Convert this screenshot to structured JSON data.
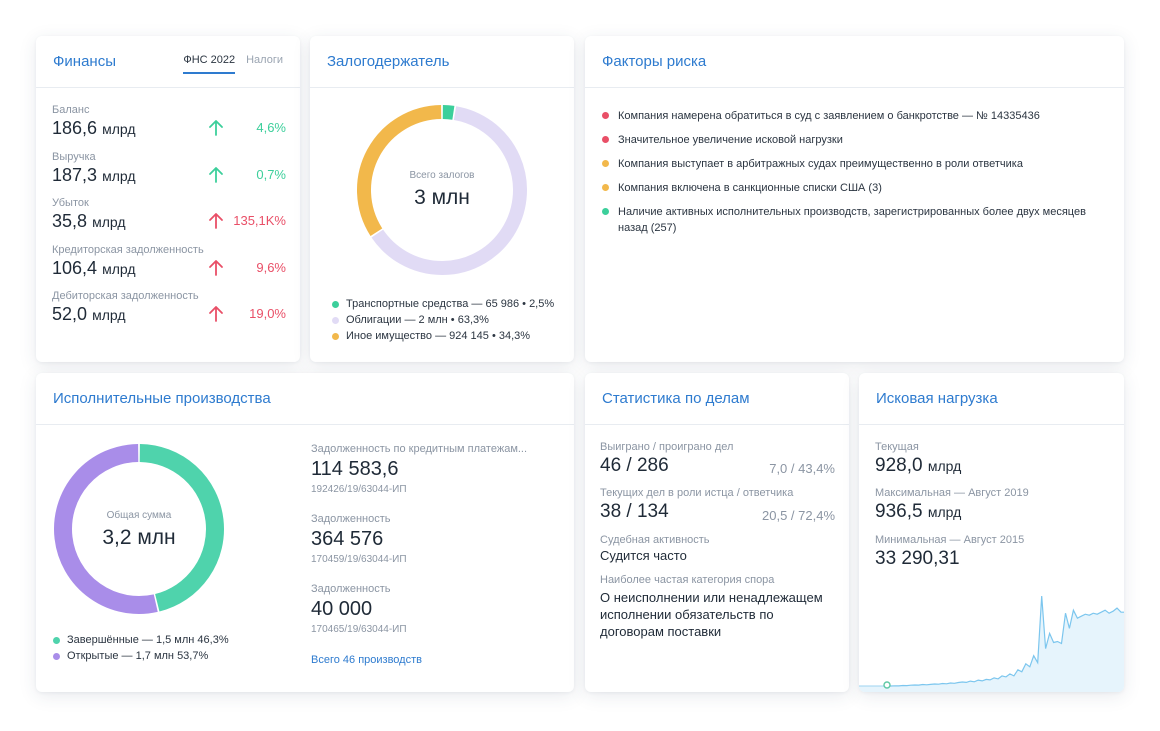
{
  "finance": {
    "title": "Финансы",
    "tabs": [
      "ФНС 2022",
      "Налоги"
    ],
    "items": [
      {
        "label": "Баланс",
        "value": "186,6",
        "unit": "млрд",
        "change": "4,6%",
        "direction": "up",
        "status_color": "#3ccf9b"
      },
      {
        "label": "Выручка",
        "value": "187,3",
        "unit": "млрд",
        "change": "0,7%",
        "direction": "up",
        "status_color": "#3ccf9b"
      },
      {
        "label": "Убыток",
        "value": "35,8",
        "unit": "млрд",
        "change": "135,1K%",
        "direction": "up",
        "status_color": "#e94f67"
      },
      {
        "label": "Кредиторская задолженность",
        "value": "106,4",
        "unit": "млрд",
        "change": "9,6%",
        "direction": "up",
        "status_color": "#e94f67"
      },
      {
        "label": "Дебиторская задолженность",
        "value": "52,0",
        "unit": "млрд",
        "change": "19,0%",
        "direction": "up",
        "status_color": "#e94f67"
      }
    ]
  },
  "pledge": {
    "title": "Залогодержатель",
    "center_label": "Всего залогов",
    "center_value": "3 млн",
    "legend": [
      "Транспортные средства — 65 986 • 2,5%",
      "Облигации — 2 млн • 63,3%",
      "Иное имущество — 924 145 • 34,3%"
    ]
  },
  "risk": {
    "title": "Факторы риска",
    "items": [
      {
        "text": "Компания намерена обратиться в суд с заявлением о банкротстве — № 14335436",
        "level_color": "#e94f67"
      },
      {
        "text": "Значительное увеличение исковой нагрузки",
        "level_color": "#e94f67"
      },
      {
        "text": "Компания выступает в арбитражных судах преимущественно в роли ответчика",
        "level_color": "#f2b84b"
      },
      {
        "text": "Компания включена в санкционные списки США (3)",
        "level_color": "#f2b84b"
      },
      {
        "text": "Наличие активных исполнительных производств, зарегистрированных более двух месяцев назад (257)",
        "level_color": "#3ccf9b"
      }
    ]
  },
  "enforcement": {
    "title": "Исполнительные производства",
    "center_label": "Общая сумма",
    "center_value": "3,2 млн",
    "legend": [
      "Завершённые — 1,5 млн 46,3%",
      "Открытые — 1,7 млн 53,7%"
    ],
    "items": [
      {
        "label": "Задолженность по кредитным платежам...",
        "value": "114 583,6",
        "number": "192426/19/63044-ИП"
      },
      {
        "label": "Задолженность",
        "value": "364 576",
        "number": "170459/19/63044-ИП"
      },
      {
        "label": "Задолженность",
        "value": "40 000",
        "number": "170465/19/63044-ИП"
      }
    ],
    "all_link": "Всего 46 производств"
  },
  "cases": {
    "title": "Статистика по делам",
    "won_lost_label": "Выиграно / проиграно дел",
    "won_lost_value": "46 / 286",
    "won_lost_extra": "7,0 / 43,4%",
    "current_label": "Текущих дел в роли истца / ответчика",
    "current_value": "38 / 134",
    "current_extra": "20,5 / 72,4%",
    "activity_label": "Судебная активность",
    "activity_value": "Судится часто",
    "category_label": "Наиболее частая категория спора",
    "category_value": "О неисполнении или ненадлежащем исполнении обязательств по договорам поставки"
  },
  "claims": {
    "title": "Исковая нагрузка",
    "current_label": "Текущая",
    "current_value": "928,0",
    "current_unit": "млрд",
    "max_label": "Максимальная — Август 2019",
    "max_value": "936,5",
    "max_unit": "млрд",
    "min_label": "Минимальная — Август 2015",
    "min_value": "33 290,31"
  },
  "chart_data": [
    {
      "type": "pie",
      "title": "",
      "center_text": "Всего залогов 3 млн",
      "series": [
        {
          "name": "Транспортные средства",
          "value": 2.5,
          "color": "#3ccf9b"
        },
        {
          "name": "Облигации",
          "value": 63.3,
          "color": "#e1dbf5"
        },
        {
          "name": "Иное имущество",
          "value": 34.3,
          "color": "#f2b84b"
        }
      ]
    },
    {
      "type": "pie",
      "title": "",
      "center_text": "Общая сумма 3,2 млн",
      "series": [
        {
          "name": "Завершённые",
          "value": 46.3,
          "color": "#4fd3ac"
        },
        {
          "name": "Открытые",
          "value": 53.7,
          "color": "#a98de9"
        }
      ]
    },
    {
      "type": "area",
      "title": "",
      "xlabel": "",
      "ylabel": "",
      "grid": false,
      "values": [
        3,
        3,
        3.2,
        3.1,
        3.5,
        3.4,
        3.8,
        4.0,
        3.9,
        4.5,
        4.2,
        4.6,
        5.0,
        4.8,
        5.5,
        5.2,
        6.0,
        5.7,
        6.5,
        7.0,
        6.6,
        7.8,
        7.2,
        8.8,
        8.0,
        9.5,
        9.0,
        11,
        10,
        13,
        12,
        15,
        13,
        19,
        17,
        25,
        22,
        33,
        26,
        92,
        40,
        55,
        46,
        47,
        45,
        75,
        60,
        78,
        70,
        72,
        74,
        73,
        75,
        74,
        76,
        78,
        75,
        77,
        80,
        76
      ]
    }
  ]
}
